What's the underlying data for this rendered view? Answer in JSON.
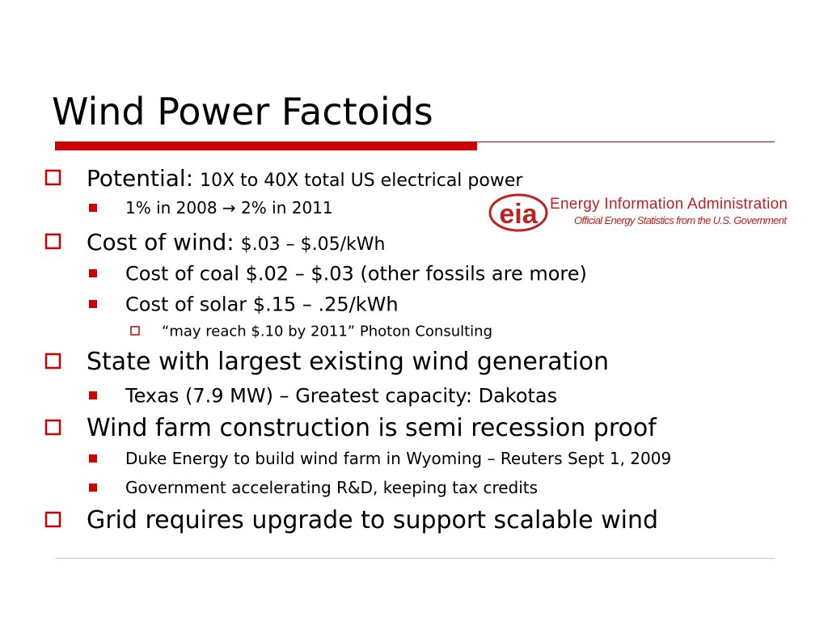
{
  "title": "Wind Power Factoids",
  "logo": {
    "mark": "eia",
    "name": "Energy Information Administration",
    "tagline": "Official Energy Statistics from the U.S. Government"
  },
  "bullets": [
    {
      "label": "Potential:",
      "text": "10X to 40X total US electrical power",
      "items": [
        {
          "text": "1% in 2008 → 2% in 2011"
        }
      ]
    },
    {
      "label": "Cost of wind:",
      "text": "$.03 – $.05/kWh",
      "items": [
        {
          "text": "Cost of coal $.02 – $.03 (other fossils are more)"
        },
        {
          "text": "Cost of solar $.15 – .25/kWh",
          "items": [
            {
              "text": "“may reach $.10 by 2011” Photon Consulting"
            }
          ]
        }
      ]
    },
    {
      "text": "State with largest existing wind generation",
      "items": [
        {
          "text": "Texas (7.9 MW) – Greatest capacity: Dakotas"
        }
      ]
    },
    {
      "text": "Wind farm construction is semi recession proof",
      "items": [
        {
          "text": "Duke Energy to build wind farm in Wyoming – Reuters Sept 1, 2009"
        },
        {
          "text": "Government accelerating R&D, keeping tax credits"
        }
      ]
    },
    {
      "text": "Grid requires upgrade to support scalable wind"
    }
  ]
}
